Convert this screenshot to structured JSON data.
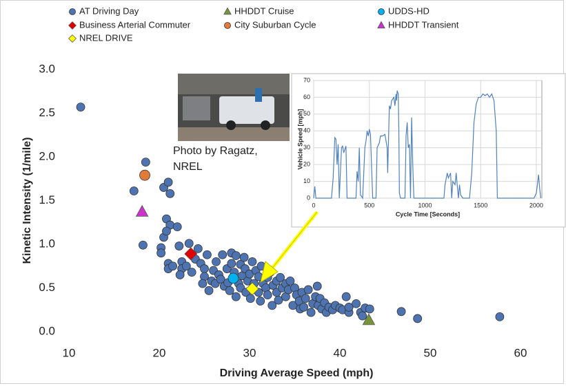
{
  "chart_data": [
    {
      "type": "scatter",
      "xlabel": "Driving Average Speed (mph)",
      "ylabel": "Kinetic Intensity (1/mile)",
      "xlim": [
        10,
        60
      ],
      "ylim": [
        0,
        3
      ],
      "xticks": [
        10,
        20,
        30,
        40,
        50,
        60
      ],
      "yticks": [
        {
          "value": 0,
          "label": "0.0"
        },
        {
          "value": 0.5,
          "label": "0.5"
        },
        {
          "value": 1,
          "label": "1.0"
        },
        {
          "value": 1.5,
          "label": "1.5"
        },
        {
          "value": 2,
          "label": "2.0"
        },
        {
          "value": 2.5,
          "label": "2.5"
        },
        {
          "value": 3,
          "label": "3.0"
        }
      ],
      "series": [
        {
          "name": "AT Driving Day",
          "color": "#4e73b1",
          "marker": "circle",
          "x": [
            11.3,
            17.2,
            18.5,
            18.2,
            20.5,
            21,
            21.2,
            20.8,
            21.2,
            22,
            20.5,
            20.8,
            20.2,
            20.2,
            21,
            21,
            21.5,
            22.2,
            22.5,
            22.5,
            22.3,
            23,
            23.3,
            23.6,
            24,
            24.3,
            24.6,
            25,
            25,
            24.8,
            25.3,
            25.5,
            25.8,
            26,
            26.2,
            26.3,
            26.6,
            26.8,
            27,
            27.2,
            27.5,
            27.6,
            27.8,
            28,
            28,
            28.3,
            28.5,
            28.5,
            28.8,
            29,
            29,
            29.2,
            29.4,
            29.5,
            29.6,
            29.8,
            30,
            30.1,
            30.3,
            30.5,
            30.7,
            31,
            31,
            31.2,
            31.3,
            31.5,
            31.8,
            32,
            32,
            32.3,
            32.5,
            32.6,
            33,
            33,
            33.2,
            33.4,
            33.6,
            34,
            34,
            34.3,
            34.5,
            34.8,
            35,
            35.2,
            35.5,
            35.6,
            35.8,
            36,
            36.2,
            36.5,
            36.8,
            37,
            37.3,
            37.5,
            37.6,
            37.8,
            38,
            38.3,
            38.5,
            38.8,
            39.2,
            39.5,
            40,
            40.3,
            40.7,
            41,
            41,
            41.8,
            42.3,
            42.5,
            42.8,
            43.3,
            46.8,
            48.6,
            57.7
          ],
          "values": [
            2.57,
            1.61,
            1.94,
            0.99,
            1.65,
            1.71,
            1.58,
            1.29,
            1.22,
            1.2,
            1.08,
            1.15,
            0.96,
            0.9,
            0.78,
            0.72,
            0.75,
            0.98,
            0.8,
            0.72,
            0.65,
            0.75,
            1.01,
            0.68,
            0.83,
            0.95,
            0.78,
            0.72,
            0.63,
            0.55,
            0.88,
            0.47,
            0.58,
            0.7,
            0.55,
            0.8,
            0.65,
            0.6,
            0.88,
            0.52,
            0.72,
            0.56,
            0.47,
            0.9,
            0.78,
            0.68,
            0.87,
            0.4,
            0.55,
            0.77,
            0.5,
            0.64,
            0.85,
            0.72,
            0.45,
            0.58,
            0.66,
            0.38,
            0.8,
            0.55,
            0.7,
            0.63,
            0.45,
            0.35,
            0.75,
            0.55,
            0.5,
            0.62,
            0.42,
            0.68,
            0.3,
            0.53,
            0.58,
            0.45,
            0.36,
            0.62,
            0.5,
            0.55,
            0.4,
            0.48,
            0.58,
            0.3,
            0.5,
            0.42,
            0.35,
            0.26,
            0.45,
            0.28,
            0.38,
            0.48,
            0.22,
            0.32,
            0.4,
            0.52,
            0.3,
            0.38,
            0.26,
            0.33,
            0.22,
            0.28,
            0.25,
            0.3,
            0.27,
            0.25,
            0.4,
            0.22,
            0.28,
            0.32,
            0.22,
            0.18,
            0.27,
            0.26,
            0.23,
            0.15,
            0.17
          ]
        },
        {
          "name": "HHDDT Cruise",
          "color": "#77933c",
          "marker": "triangle",
          "x": [
            43.2
          ],
          "values": [
            0.13
          ]
        },
        {
          "name": "UDDS-HD",
          "color": "#00b0f0",
          "marker": "circle",
          "x": [
            28.2
          ],
          "values": [
            0.61
          ]
        },
        {
          "name": "Business Arterial Commuter",
          "color": "#e00000",
          "marker": "diamond",
          "x": [
            23.5
          ],
          "values": [
            0.89
          ]
        },
        {
          "name": "City Suburban Cycle",
          "color": "#e07b39",
          "marker": "circle",
          "x": [
            18.4
          ],
          "values": [
            1.79
          ]
        },
        {
          "name": "HHDDT Transient",
          "color": "#cc33cc",
          "marker": "triangle",
          "x": [
            18.1
          ],
          "values": [
            1.37
          ]
        },
        {
          "name": "NREL DRIVE",
          "color": "#ffff00",
          "marker": "diamond",
          "x": [
            30.3
          ],
          "values": [
            0.49
          ]
        }
      ]
    },
    {
      "type": "line",
      "xlabel": "Cycle Time [Seconds]",
      "ylabel": "Vehicle Speed [mph]",
      "xlim": [
        0,
        2050
      ],
      "ylim": [
        0,
        70
      ],
      "xticks": [
        0,
        500,
        1000,
        1500,
        2000
      ],
      "yticks": [
        0,
        10,
        20,
        30,
        40,
        50,
        60,
        70
      ],
      "grid": true,
      "series": [
        {
          "color": "#4f81bd",
          "x": [
            0,
            10,
            20,
            160,
            175,
            190,
            200,
            210,
            220,
            230,
            240,
            250,
            260,
            270,
            290,
            300,
            350,
            380,
            390,
            400,
            410,
            420,
            440,
            460,
            470,
            480,
            490,
            500,
            510,
            530,
            560,
            570,
            590,
            600,
            620,
            640,
            660,
            665,
            680,
            690,
            700,
            720,
            730,
            740,
            745,
            750,
            760,
            765,
            770,
            780,
            820,
            830,
            840,
            850,
            860,
            870,
            880,
            890,
            900,
            1000,
            1170,
            1180,
            1200,
            1210,
            1230,
            1240,
            1250,
            1270,
            1280,
            1300,
            1310,
            1320,
            1340,
            1400,
            1420,
            1440,
            1460,
            1480,
            1500,
            1520,
            1540,
            1560,
            1580,
            1600,
            1620,
            1640,
            1650,
            1700,
            1900,
            1980,
            2000,
            2010,
            2020,
            2030,
            2040
          ],
          "values": [
            0,
            7,
            0,
            0,
            12,
            36,
            35,
            20,
            32,
            0,
            15,
            30,
            31,
            27,
            31,
            0,
            0,
            0,
            16,
            10,
            30,
            2,
            0,
            30,
            34,
            40,
            37,
            41,
            38,
            0,
            0,
            30,
            33,
            37,
            37,
            38,
            30,
            15,
            55,
            53,
            58,
            60,
            55,
            62,
            58,
            64,
            62,
            40,
            3,
            0,
            0,
            37,
            45,
            30,
            32,
            0,
            48,
            20,
            0,
            0,
            0,
            8,
            15,
            12,
            15,
            0,
            10,
            8,
            15,
            0,
            8,
            2,
            0,
            0,
            15,
            45,
            56,
            60,
            60,
            62,
            61,
            62,
            60,
            62,
            58,
            40,
            0,
            0,
            0,
            0,
            3,
            8,
            14,
            6,
            0
          ]
        }
      ]
    }
  ],
  "photo_caption": [
    "Photo by Ragatz,",
    "NREL"
  ]
}
